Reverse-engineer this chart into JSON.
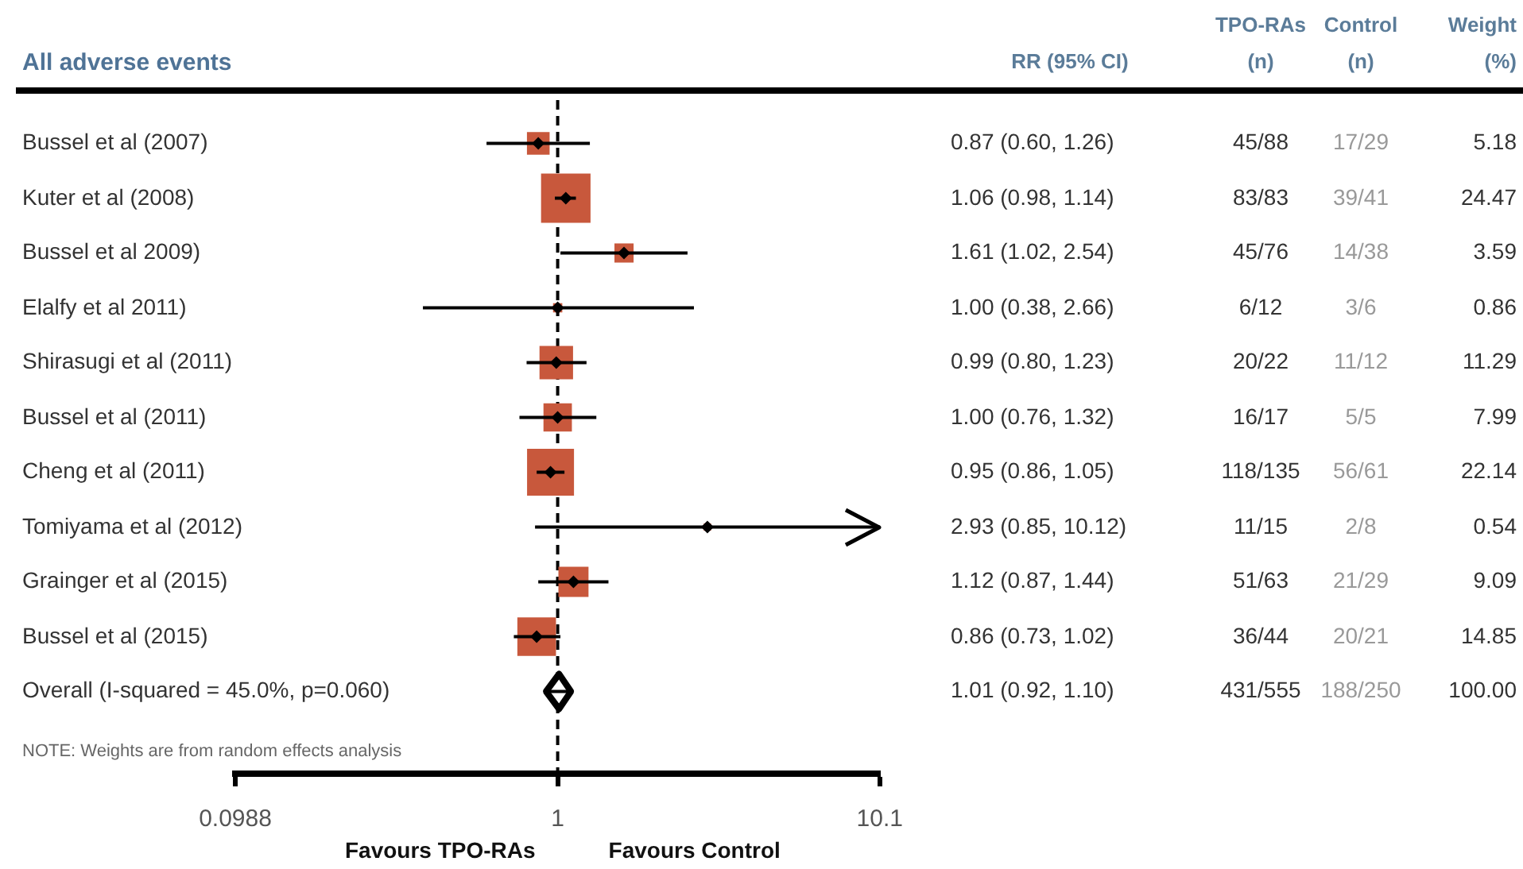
{
  "chart_data": [
    {
      "type": "scatter",
      "orientation": "horizontal",
      "title": "All adverse events",
      "log": "x",
      "xlim": [
        0.0988,
        10.12
      ],
      "xticks": [
        0.0988,
        1,
        10.1
      ],
      "categories": [
        "Bussel et al (2007)",
        "Kuter et al (2008)",
        "Bussel et al 2009)",
        "Elalfy et al 2011)",
        "Shirasugi et al (2011)",
        "Bussel et al (2011)",
        "Cheng et al (2011)",
        "Tomiyama et al (2012)",
        "Grainger et al (2015)",
        "Bussel et al (2015)",
        "Overall (I-squared = 45.0%, p=0.060)"
      ],
      "series": [
        {
          "marker": "square",
          "color": "#c8583c",
          "values": [
            0.87,
            1.06,
            1.61,
            1.0,
            0.99,
            1.0,
            0.95,
            2.93,
            1.12,
            0.86,
            null
          ],
          "errors": [
            [
              0.6,
              1.26
            ],
            [
              0.98,
              1.14
            ],
            [
              1.02,
              2.54
            ],
            [
              0.38,
              2.66
            ],
            [
              0.8,
              1.23
            ],
            [
              0.76,
              1.32
            ],
            [
              0.86,
              1.05
            ],
            [
              0.85,
              10.12
            ],
            [
              0.87,
              1.44
            ],
            [
              0.73,
              1.02
            ],
            null
          ],
          "sizes": [
            0.21,
            1,
            0.15,
            0.035,
            0.46,
            0.33,
            0.9,
            0.022,
            0.37,
            0.61,
            null
          ]
        },
        {
          "marker": "diamond",
          "color": "#000000",
          "values": [
            null,
            null,
            null,
            null,
            null,
            null,
            null,
            null,
            null,
            null,
            1.01
          ],
          "errors": [
            null,
            null,
            null,
            null,
            null,
            null,
            null,
            null,
            null,
            null,
            [
              0.92,
              1.1
            ]
          ]
        }
      ],
      "ref_lines": [
        {
          "axis": "x",
          "value": 1,
          "line_style": "dashed",
          "color": "#000000"
        }
      ],
      "annotations": [
        "NOTE: Weights are from random effects analysis",
        "Favours TPO-RAs",
        "Favours Control"
      ]
    },
    {
      "type": "other",
      "categories": [
        "RR (95% CI)",
        "TPO-RAs (n)",
        "Control (n)",
        "Weight (%)"
      ],
      "cell_labels": [
        [
          "0.87 (0.60, 1.26)",
          "45/88",
          "17/29",
          "5.18"
        ],
        [
          "1.06 (0.98, 1.14)",
          "83/83",
          "39/41",
          "24.47"
        ],
        [
          "1.61 (1.02, 2.54)",
          "45/76",
          "14/38",
          "3.59"
        ],
        [
          "1.00 (0.38, 2.66)",
          "6/12",
          "3/6",
          "0.86"
        ],
        [
          "0.99 (0.80, 1.23)",
          "20/22",
          "11/12",
          "11.29"
        ],
        [
          "1.00 (0.76, 1.32)",
          "16/17",
          "5/5",
          "7.99"
        ],
        [
          "0.95 (0.86, 1.05)",
          "118/135",
          "56/61",
          "22.14"
        ],
        [
          "2.93 (0.85, 10.12)",
          "11/15",
          "2/8",
          "0.54"
        ],
        [
          "1.12 (0.87, 1.44)",
          "51/63",
          "21/29",
          "9.09"
        ],
        [
          "0.86 (0.73, 1.02)",
          "36/44",
          "20/21",
          "14.85"
        ],
        [
          "1.01 (0.92, 1.10)",
          "431/555",
          "188/250",
          "100.00"
        ]
      ]
    }
  ]
}
